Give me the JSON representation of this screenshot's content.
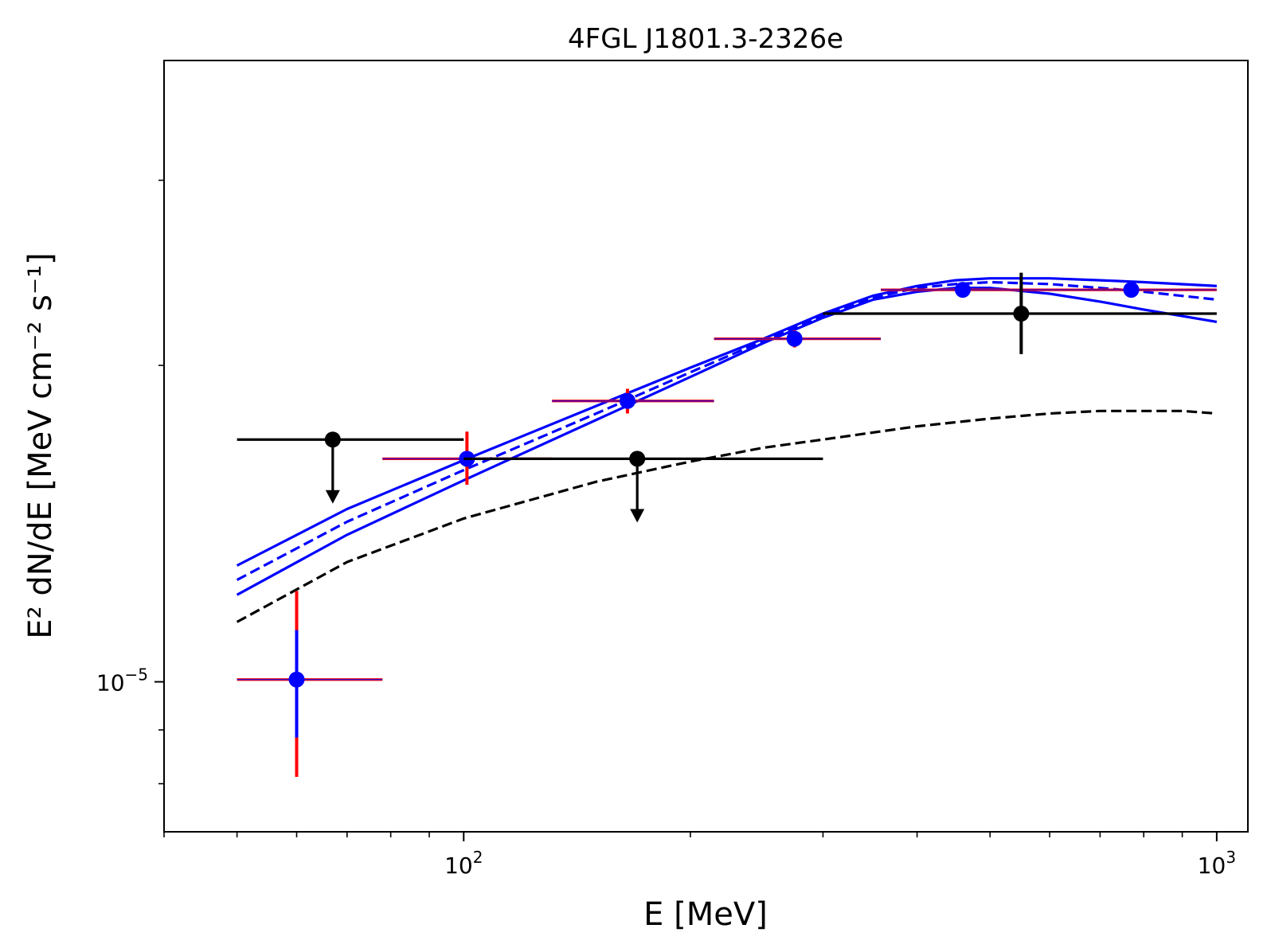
{
  "chart_data": {
    "type": "scatter",
    "title": "4FGL J1801.3-2326e",
    "xlabel": "E [MeV]",
    "ylabel": "E² dN/dE [MeV cm⁻² s⁻¹]",
    "xscale": "log",
    "yscale": "log",
    "xlim": [
      40,
      1100
    ],
    "ylim": [
      7.2e-06,
      3.9e-05
    ],
    "grid": false,
    "x_ticks": [
      {
        "value": 100,
        "label": "10",
        "exp": "2"
      },
      {
        "value": 1000,
        "label": "10",
        "exp": "3"
      }
    ],
    "y_ticks": [
      {
        "value": 1e-05,
        "label": "10",
        "exp": "−5"
      }
    ],
    "series": [
      {
        "kind": "errorbar",
        "color": "#0000ff",
        "err_color": "#ff0000",
        "points": [
          {
            "x": 60,
            "y": 1.005e-05,
            "xlo": 50,
            "xhi": 78,
            "ylo": 8.12e-06,
            "yhi": 1.22e-05,
            "ylo_inner": 8.85e-06,
            "yhi_inner": 1.12e-05
          },
          {
            "x": 101,
            "y": 1.63e-05,
            "xlo": 78,
            "xhi": 131,
            "ylo": 1.54e-05,
            "yhi": 1.73e-05
          },
          {
            "x": 165,
            "y": 1.85e-05,
            "xlo": 131,
            "xhi": 215,
            "ylo": 1.8e-05,
            "yhi": 1.9e-05
          },
          {
            "x": 275,
            "y": 2.12e-05,
            "xlo": 215,
            "xhi": 358,
            "ylo": 2.08e-05,
            "yhi": 2.16e-05
          },
          {
            "x": 460,
            "y": 2.36e-05,
            "xlo": 358,
            "xhi": 597,
            "ylo": 2.33e-05,
            "yhi": 2.39e-05
          },
          {
            "x": 770,
            "y": 2.36e-05,
            "xlo": 597,
            "xhi": 1000,
            "ylo": 2.34e-05,
            "yhi": 2.38e-05
          }
        ]
      },
      {
        "kind": "errorbar",
        "color": "#000000",
        "points": [
          {
            "x": 67,
            "y": 1.7e-05,
            "xlo": 50,
            "xhi": 100,
            "upper_limit": true,
            "arrow_to": 1.48e-05
          },
          {
            "x": 170,
            "y": 1.63e-05,
            "xlo": 100,
            "xhi": 300,
            "upper_limit": true,
            "arrow_to": 1.42e-05
          },
          {
            "x": 550,
            "y": 2.24e-05,
            "xlo": 300,
            "xhi": 1000,
            "ylo": 2.05e-05,
            "yhi": 2.45e-05
          }
        ]
      },
      {
        "kind": "line",
        "color": "#0000ff",
        "style": "solid",
        "x": [
          50,
          70,
          100,
          150,
          200,
          250,
          300,
          350,
          400,
          450,
          500,
          600,
          700,
          800,
          1000
        ],
        "y": [
          1.29e-05,
          1.46e-05,
          1.625e-05,
          1.83e-05,
          1.99e-05,
          2.12e-05,
          2.24e-05,
          2.33e-05,
          2.38e-05,
          2.41e-05,
          2.42e-05,
          2.42e-05,
          2.41e-05,
          2.4e-05,
          2.38e-05
        ]
      },
      {
        "kind": "line",
        "color": "#0000ff",
        "style": "dashed",
        "x": [
          50,
          70,
          100,
          150,
          200,
          250,
          300,
          350,
          400,
          450,
          500,
          600,
          700,
          800,
          1000
        ],
        "y": [
          1.25e-05,
          1.42e-05,
          1.59e-05,
          1.8e-05,
          1.97e-05,
          2.11e-05,
          2.23e-05,
          2.32e-05,
          2.37e-05,
          2.39e-05,
          2.4e-05,
          2.39e-05,
          2.37e-05,
          2.35e-05,
          2.31e-05
        ]
      },
      {
        "kind": "line",
        "color": "#0000ff",
        "style": "solid",
        "x": [
          50,
          70,
          100,
          150,
          200,
          250,
          300,
          350,
          400,
          450,
          500,
          600,
          700,
          800,
          1000
        ],
        "y": [
          1.21e-05,
          1.38e-05,
          1.555e-05,
          1.775e-05,
          1.95e-05,
          2.1e-05,
          2.22e-05,
          2.31e-05,
          2.35e-05,
          2.37e-05,
          2.37e-05,
          2.34e-05,
          2.3e-05,
          2.26e-05,
          2.2e-05
        ]
      },
      {
        "kind": "line",
        "color": "#000000",
        "style": "dashed",
        "x": [
          50,
          70,
          100,
          150,
          200,
          250,
          300,
          400,
          500,
          600,
          700,
          800,
          900,
          1000
        ],
        "y": [
          1.14e-05,
          1.3e-05,
          1.43e-05,
          1.55e-05,
          1.62e-05,
          1.67e-05,
          1.7e-05,
          1.75e-05,
          1.78e-05,
          1.8e-05,
          1.81e-05,
          1.81e-05,
          1.81e-05,
          1.8e-05
        ]
      }
    ]
  }
}
